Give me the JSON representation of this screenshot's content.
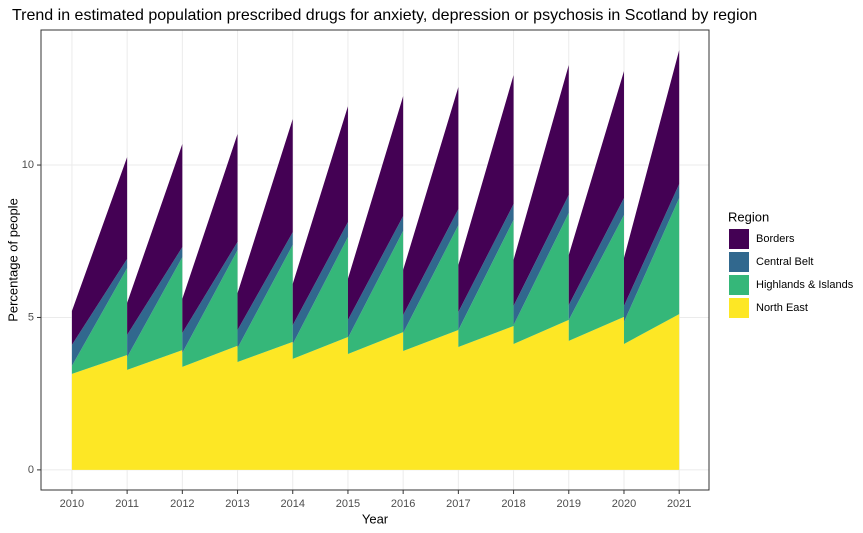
{
  "chart_data": {
    "type": "stacked-area",
    "title": "Trend in estimated population prescribed drugs for anxiety, depression or psychosis in Scotland by region",
    "x_label": "Year",
    "y_label": "Percentage of people",
    "legend_title": "Region",
    "x": [
      2010,
      2011,
      2011,
      2012,
      2012,
      2013,
      2013,
      2014,
      2014,
      2015,
      2015,
      2016,
      2016,
      2017,
      2017,
      2018,
      2018,
      2019,
      2019,
      2020,
      2020,
      2021
    ],
    "series": [
      {
        "name": "Borders",
        "color": "#440154",
        "values": [
          1.11,
          3.34,
          1.05,
          3.38,
          1.12,
          3.54,
          1.21,
          3.71,
          1.35,
          3.8,
          1.35,
          3.93,
          1.48,
          4.0,
          1.54,
          4.23,
          1.51,
          4.26,
          1.64,
          4.16,
          1.57,
          4.39
        ]
      },
      {
        "name": "Central Belt",
        "color": "#31688e",
        "values": [
          0.69,
          0.3,
          0.73,
          0.33,
          0.65,
          0.27,
          0.59,
          0.42,
          0.62,
          0.49,
          0.59,
          0.49,
          0.59,
          0.53,
          0.59,
          0.52,
          0.63,
          0.59,
          0.49,
          0.56,
          0.53,
          0.46
        ]
      },
      {
        "name": "Highlands & Islands",
        "color": "#35b779",
        "values": [
          0.26,
          2.85,
          0.42,
          3.05,
          0.46,
          3.14,
          0.46,
          3.18,
          0.49,
          3.28,
          0.53,
          3.32,
          0.59,
          3.44,
          0.56,
          3.48,
          0.62,
          3.51,
          0.69,
          3.34,
          0.72,
          3.81
        ]
      },
      {
        "name": "North East",
        "color": "#fde725",
        "values": [
          3.15,
          3.77,
          3.28,
          3.93,
          3.38,
          4.07,
          3.54,
          4.2,
          3.64,
          4.36,
          3.8,
          4.52,
          3.9,
          4.59,
          4.03,
          4.72,
          4.13,
          4.92,
          4.23,
          5.02,
          4.13,
          5.11
        ]
      }
    ],
    "xlim": [
      2009.44,
      2021.54
    ],
    "xticks": [
      2010,
      2011,
      2012,
      2013,
      2014,
      2015,
      2016,
      2017,
      2018,
      2019,
      2020,
      2021
    ],
    "ylim": [
      -0.66,
      14.43
    ],
    "yticks": [
      0,
      5,
      10
    ],
    "grid": true
  }
}
